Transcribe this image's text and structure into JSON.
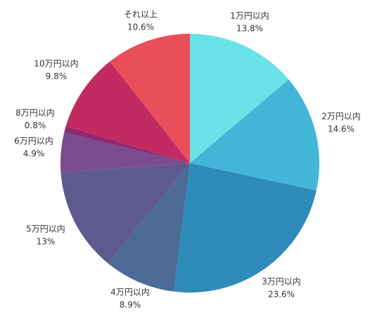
{
  "chart_data": {
    "type": "pie",
    "categories": [
      "1万円以内",
      "2万円以内",
      "3万円以内",
      "4万円以内",
      "5万円以内",
      "6万円以内",
      "8万円以内",
      "10万円以内",
      "それ以上"
    ],
    "values": [
      13.8,
      14.6,
      23.6,
      8.9,
      13,
      4.9,
      0.8,
      9.8,
      10.6
    ],
    "value_labels": [
      "13.8%",
      "14.6%",
      "23.6%",
      "8.9%",
      "13%",
      "4.9%",
      "0.8%",
      "9.8%",
      "10.6%"
    ],
    "colors": [
      "#6ae3e8",
      "#42b6d6",
      "#2e8ab8",
      "#4b6a96",
      "#5e5a8e",
      "#7c4a8e",
      "#8e2a6e",
      "#c42a62",
      "#e94f5a"
    ]
  }
}
